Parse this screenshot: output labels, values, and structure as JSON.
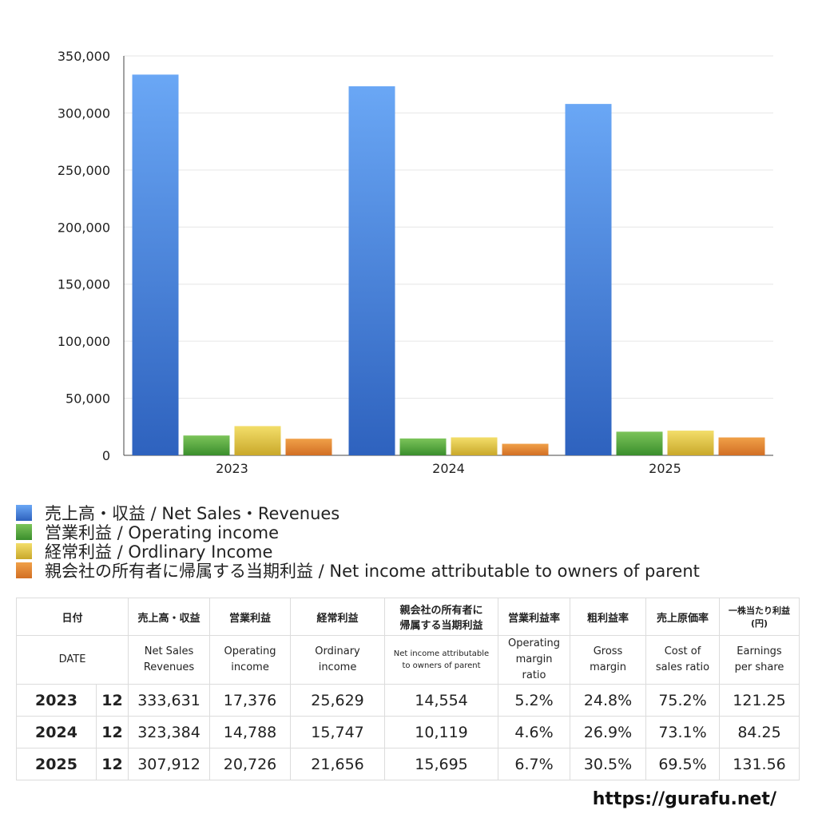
{
  "chart_data": {
    "type": "bar",
    "categories": [
      "2023",
      "2024",
      "2025"
    ],
    "series": [
      {
        "name": "売上高・収益 / Net Sales・Revenues",
        "values": [
          333631,
          323384,
          307912
        ],
        "color_top": "#6aa7f5",
        "color_bottom": "#2e62be"
      },
      {
        "name": "営業利益 / Operating income",
        "values": [
          17376,
          14788,
          20726
        ],
        "color_top": "#7cc45a",
        "color_bottom": "#3a8e2c"
      },
      {
        "name": "経常利益 / Ordlinary Income",
        "values": [
          25629,
          15747,
          21656
        ],
        "color_top": "#f3de6a",
        "color_bottom": "#c9a82a"
      },
      {
        "name": "親会社の所有者に帰属する当期利益 / Net income attributable to owners of parent",
        "values": [
          14554,
          10119,
          15695
        ],
        "color_top": "#f0a048",
        "color_bottom": "#d26f24"
      }
    ],
    "ylim": [
      0,
      350000
    ],
    "yticks": [
      "0",
      "50,000",
      "100,000",
      "150,000",
      "200,000",
      "250,000",
      "300,000",
      "350,000"
    ],
    "grid": true,
    "legend_placement": "bottom"
  },
  "table": {
    "headers_ja": [
      "日付",
      "売上高・収益",
      "営業利益",
      "経常利益",
      "親会社の所有者に\n帰属する当期利益",
      "営業利益率",
      "粗利益率",
      "売上原価率",
      "一株当たり利益\n(円)"
    ],
    "headers_en": [
      "DATE",
      "Net Sales\nRevenues",
      "Operating\nincome",
      "Ordinary\nincome",
      "Net income attributable\nto owners of parent",
      "Operating\nmargin\nratio",
      "Gross\nmargin",
      "Cost of\nsales ratio",
      "Earnings\nper share"
    ],
    "rows": [
      {
        "year": "2023",
        "month": "12",
        "values": [
          "333,631",
          "17,376",
          "25,629",
          "14,554",
          "5.2%",
          "24.8%",
          "75.2%",
          "121.25"
        ]
      },
      {
        "year": "2024",
        "month": "12",
        "values": [
          "323,384",
          "14,788",
          "15,747",
          "10,119",
          "4.6%",
          "26.9%",
          "73.1%",
          "84.25"
        ]
      },
      {
        "year": "2025",
        "month": "12",
        "values": [
          "307,912",
          "20,726",
          "21,656",
          "15,695",
          "6.7%",
          "30.5%",
          "69.5%",
          "131.56"
        ]
      }
    ]
  },
  "source": "https://gurafu.net/"
}
